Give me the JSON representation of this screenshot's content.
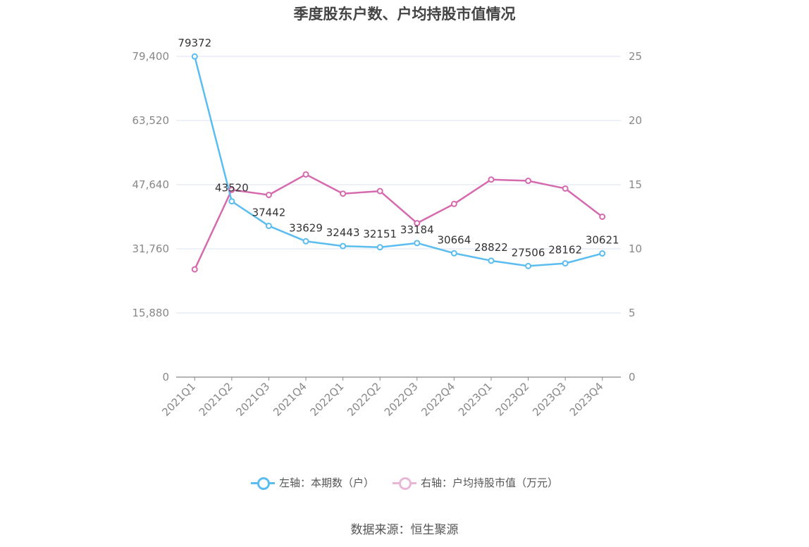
{
  "title": "季度股东户数、户均持股市值情况",
  "source": "数据来源：恒生聚源",
  "legend": {
    "left_label": "左轴：本期数（户）",
    "right_label": "右轴：户均持股市值（万元）"
  },
  "colors": {
    "left_series": "#5bbdef",
    "right_series": "#d56aae",
    "grid": "#dde6f0",
    "axis_text": "#888888",
    "label_text": "#333333"
  },
  "chart_data": {
    "type": "line",
    "categories": [
      "2021Q1",
      "2021Q2",
      "2021Q3",
      "2021Q4",
      "2022Q1",
      "2022Q2",
      "2022Q3",
      "2022Q4",
      "2023Q1",
      "2023Q2",
      "2023Q3",
      "2023Q4"
    ],
    "series": [
      {
        "name": "左轴：本期数（户）",
        "axis": "left",
        "values": [
          79372,
          43520,
          37442,
          33629,
          32443,
          32151,
          33184,
          30664,
          28822,
          27506,
          28162,
          30621
        ],
        "labels": [
          "79372",
          "43520",
          "37442",
          "33629",
          "32443",
          "32151",
          "33184",
          "30664",
          "28822",
          "27506",
          "28162",
          "30621"
        ]
      },
      {
        "name": "右轴：户均持股市值（万元）",
        "axis": "right",
        "values": [
          8.4,
          14.6,
          14.2,
          15.8,
          14.3,
          14.5,
          12.0,
          13.5,
          15.4,
          15.3,
          14.7,
          12.5
        ]
      }
    ],
    "left_axis": {
      "ylim": [
        0,
        79400
      ],
      "ticks": [
        "0",
        "15,880",
        "31,760",
        "47,640",
        "63,520",
        "79,400"
      ],
      "tick_values": [
        0,
        15880,
        31760,
        47640,
        63520,
        79400
      ]
    },
    "right_axis": {
      "ylim": [
        0,
        25
      ],
      "ticks": [
        "0",
        "5",
        "10",
        "15",
        "20",
        "25"
      ],
      "tick_values": [
        0,
        5,
        10,
        15,
        20,
        25
      ]
    },
    "grid": true,
    "legend_position": "bottom"
  }
}
